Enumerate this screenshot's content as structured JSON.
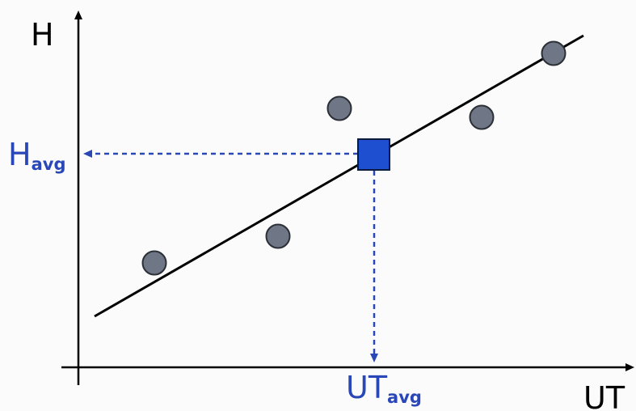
{
  "axes": {
    "y_label": "H",
    "x_label": "UT"
  },
  "average_labels": {
    "h_avg": {
      "main": "H",
      "sub": "avg"
    },
    "ut_avg": {
      "main": "UT",
      "sub": "avg"
    }
  },
  "colors": {
    "axis": "#000000",
    "trend_line": "#000000",
    "data_point_fill": "#6f7685",
    "data_point_stroke": "#2b2f36",
    "average_marker_fill": "#1f4fd1",
    "average_marker_stroke": "#0a1a3a",
    "guide_line": "#2a47b8",
    "average_label": "#2a47b8"
  },
  "legend": "none",
  "grid": false
}
